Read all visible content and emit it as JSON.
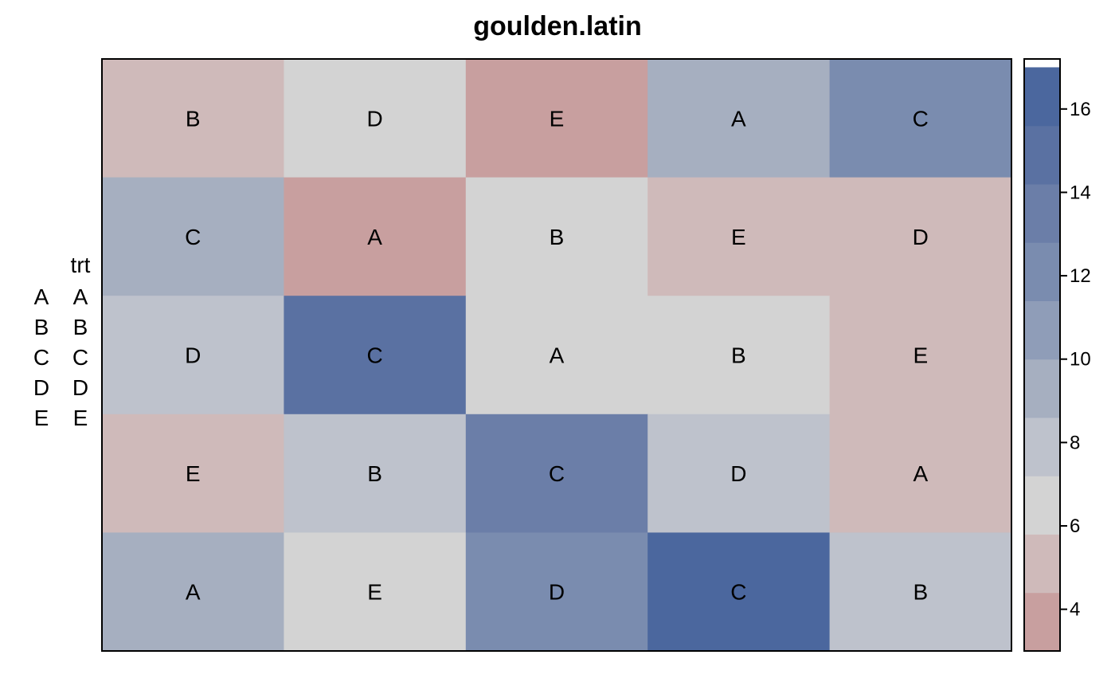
{
  "chart_data": {
    "type": "heatmap",
    "title": "goulden.latin",
    "nrow": 5,
    "ncol": 5,
    "cells": [
      {
        "row": 1,
        "col": 1,
        "trt": "B",
        "value": 5
      },
      {
        "row": 1,
        "col": 2,
        "trt": "D",
        "value": 6.5
      },
      {
        "row": 1,
        "col": 3,
        "trt": "E",
        "value": 4
      },
      {
        "row": 1,
        "col": 4,
        "trt": "A",
        "value": 9.5
      },
      {
        "row": 1,
        "col": 5,
        "trt": "C",
        "value": 12
      },
      {
        "row": 2,
        "col": 1,
        "trt": "C",
        "value": 9.5
      },
      {
        "row": 2,
        "col": 2,
        "trt": "A",
        "value": 4
      },
      {
        "row": 2,
        "col": 3,
        "trt": "B",
        "value": 6.5
      },
      {
        "row": 2,
        "col": 4,
        "trt": "E",
        "value": 5
      },
      {
        "row": 2,
        "col": 5,
        "trt": "D",
        "value": 5
      },
      {
        "row": 3,
        "col": 1,
        "trt": "D",
        "value": 8
      },
      {
        "row": 3,
        "col": 2,
        "trt": "C",
        "value": 14.5
      },
      {
        "row": 3,
        "col": 3,
        "trt": "A",
        "value": 6.5
      },
      {
        "row": 3,
        "col": 4,
        "trt": "B",
        "value": 6.5
      },
      {
        "row": 3,
        "col": 5,
        "trt": "E",
        "value": 5
      },
      {
        "row": 4,
        "col": 1,
        "trt": "E",
        "value": 5
      },
      {
        "row": 4,
        "col": 2,
        "trt": "B",
        "value": 8
      },
      {
        "row": 4,
        "col": 3,
        "trt": "C",
        "value": 13
      },
      {
        "row": 4,
        "col": 4,
        "trt": "D",
        "value": 8
      },
      {
        "row": 4,
        "col": 5,
        "trt": "A",
        "value": 5
      },
      {
        "row": 5,
        "col": 1,
        "trt": "A",
        "value": 9.5
      },
      {
        "row": 5,
        "col": 2,
        "trt": "E",
        "value": 6.5
      },
      {
        "row": 5,
        "col": 3,
        "trt": "D",
        "value": 12
      },
      {
        "row": 5,
        "col": 4,
        "trt": "C",
        "value": 16.5
      },
      {
        "row": 5,
        "col": 5,
        "trt": "B",
        "value": 8
      }
    ],
    "colorkey": {
      "breaks": [
        3,
        4.4,
        5.8,
        7.2,
        8.6,
        10,
        11.4,
        12.8,
        14.2,
        15.6,
        17
      ],
      "colors": [
        "#c89f9f",
        "#cfbaba",
        "#d3d3d3",
        "#bec2cc",
        "#a6afc0",
        "#8f9db8",
        "#7a8caf",
        "#6b7ea8",
        "#5a71a2",
        "#4b679e",
        "#365899"
      ],
      "ticks": [
        4,
        6,
        8,
        10,
        12,
        14,
        16
      ],
      "tick_labels": [
        "4",
        "6",
        "8",
        "10",
        "12",
        "14",
        "16"
      ],
      "range": [
        3,
        17.2
      ]
    },
    "key": {
      "title": "trt",
      "levels": [
        "A",
        "B",
        "C",
        "D",
        "E"
      ]
    }
  }
}
